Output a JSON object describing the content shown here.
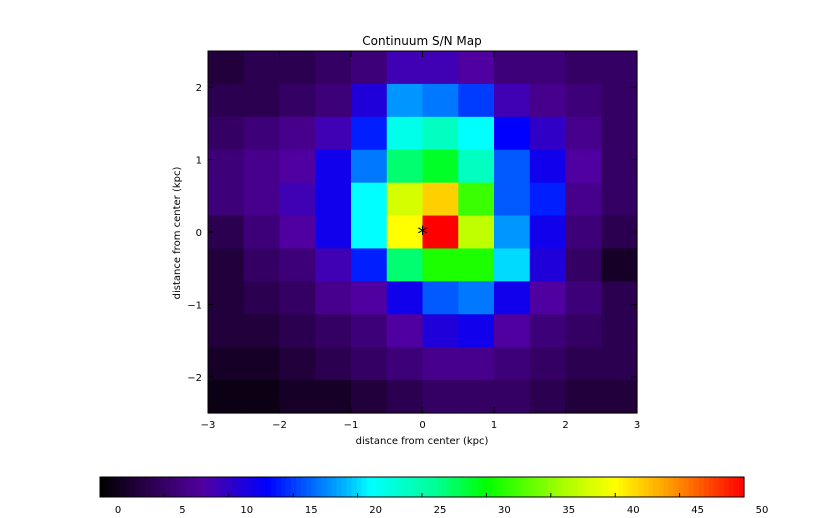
{
  "chart_data": {
    "type": "heatmap",
    "title": "Continuum S/N Map",
    "xlabel": "distance from center (kpc)",
    "ylabel": "distance from center (kpc)",
    "xlim": [
      -3,
      3
    ],
    "ylim": [
      -2.5,
      2.5
    ],
    "xticks": [
      -3,
      -2,
      -1,
      0,
      1,
      2,
      3
    ],
    "yticks": [
      -2,
      -1,
      0,
      1,
      2
    ],
    "grid": false,
    "marker": {
      "symbol": "*",
      "x": 0,
      "y": 0
    },
    "colorbar": {
      "location": "bottom",
      "min": 0,
      "max": 50,
      "ticks": [
        0,
        5,
        10,
        15,
        20,
        25,
        30,
        35,
        40,
        45,
        50
      ]
    },
    "values_rows_top_to_bottom": [
      [
        3,
        4,
        4,
        5,
        6,
        9,
        9,
        8,
        6,
        6,
        5,
        5
      ],
      [
        4,
        4,
        5,
        6,
        11,
        18,
        17,
        15,
        9,
        7,
        6,
        5
      ],
      [
        5,
        6,
        7,
        9,
        14,
        22,
        24,
        21,
        13,
        10,
        7,
        5
      ],
      [
        6,
        7,
        8,
        12,
        17,
        27,
        29,
        24,
        16,
        12,
        8,
        5
      ],
      [
        6,
        7,
        9,
        12,
        21,
        38,
        42,
        32,
        16,
        14,
        7,
        5
      ],
      [
        4,
        6,
        8,
        12,
        21,
        40,
        50,
        37,
        18,
        12,
        6,
        4
      ],
      [
        3,
        5,
        6,
        9,
        14,
        27,
        31,
        31,
        20,
        11,
        5,
        2
      ],
      [
        3,
        4,
        5,
        7,
        8,
        12,
        16,
        17,
        12,
        8,
        6,
        4
      ],
      [
        3,
        3,
        4,
        5,
        6,
        8,
        11,
        12,
        8,
        6,
        5,
        4
      ],
      [
        2,
        2,
        3,
        4,
        5,
        6,
        7,
        7,
        6,
        5,
        4,
        4
      ],
      [
        1,
        1,
        2,
        2,
        3,
        4,
        5,
        5,
        5,
        4,
        3,
        3
      ]
    ]
  }
}
